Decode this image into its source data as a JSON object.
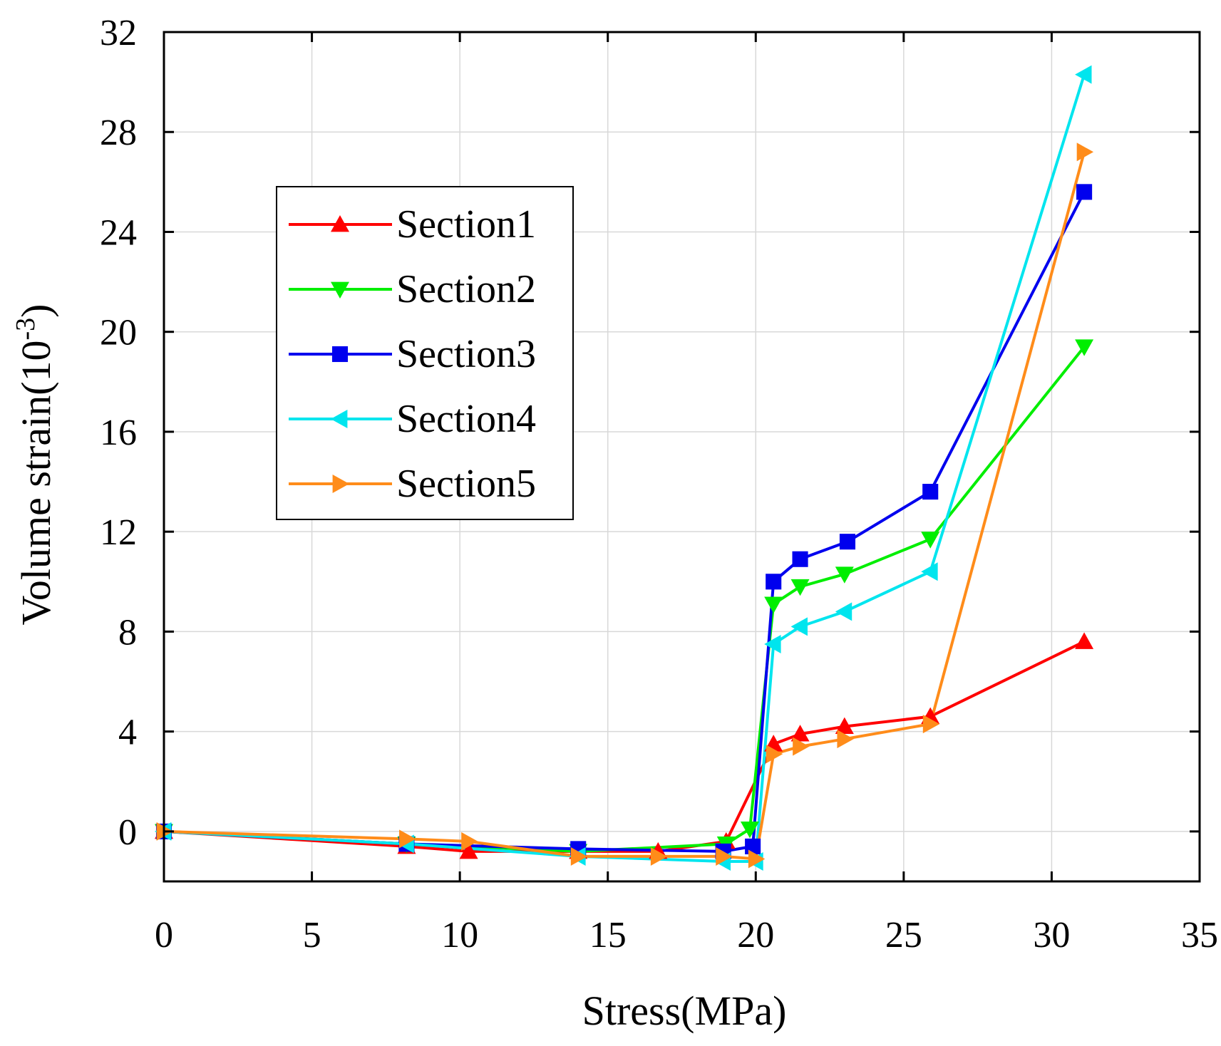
{
  "chart_data": {
    "type": "line",
    "xlabel": "Stress(MPa)",
    "ylabel": "Volume strain(10",
    "ylabel_superscript": "-3",
    "ylabel_close": ")",
    "xlim": [
      0,
      35
    ],
    "ylim": [
      -2,
      32
    ],
    "xticks": [
      0,
      5,
      10,
      15,
      20,
      25,
      30,
      35
    ],
    "yticks": [
      0,
      4,
      8,
      12,
      16,
      20,
      24,
      28,
      32
    ],
    "grid": true,
    "legend_position": "upper-left",
    "series": [
      {
        "name": "Section1",
        "color": "#ff0000",
        "marker": "triangle-up",
        "points": [
          [
            0,
            0
          ],
          [
            8.2,
            -0.6
          ],
          [
            10.3,
            -0.8
          ],
          [
            14,
            -0.8
          ],
          [
            16.7,
            -0.8
          ],
          [
            19,
            -0.4
          ],
          [
            20.6,
            3.5
          ],
          [
            21.5,
            3.9
          ],
          [
            23,
            4.2
          ],
          [
            25.9,
            4.6
          ],
          [
            31.1,
            7.6
          ]
        ]
      },
      {
        "name": "Section2",
        "color": "#00ee00",
        "marker": "triangle-down",
        "points": [
          [
            0,
            0
          ],
          [
            8.2,
            -0.5
          ],
          [
            14,
            -0.8
          ],
          [
            19,
            -0.5
          ],
          [
            19.8,
            0.1
          ],
          [
            20.6,
            9.1
          ],
          [
            21.5,
            9.8
          ],
          [
            23,
            10.3
          ],
          [
            25.9,
            11.7
          ],
          [
            31.1,
            19.4
          ]
        ]
      },
      {
        "name": "Section3",
        "color": "#0000ee",
        "marker": "square",
        "points": [
          [
            0,
            0
          ],
          [
            8.2,
            -0.5
          ],
          [
            14,
            -0.7
          ],
          [
            18.9,
            -0.8
          ],
          [
            19.9,
            -0.6
          ],
          [
            20.6,
            10
          ],
          [
            21.5,
            10.9
          ],
          [
            23.1,
            11.6
          ],
          [
            25.9,
            13.6
          ],
          [
            31.1,
            25.6
          ]
        ]
      },
      {
        "name": "Section4",
        "color": "#00e5ee",
        "marker": "triangle-left",
        "points": [
          [
            0,
            0
          ],
          [
            8.2,
            -0.5
          ],
          [
            14,
            -1.0
          ],
          [
            18.9,
            -1.2
          ],
          [
            20,
            -1.2
          ],
          [
            20.6,
            7.5
          ],
          [
            21.5,
            8.2
          ],
          [
            23,
            8.8
          ],
          [
            25.9,
            10.4
          ],
          [
            31.1,
            30.3
          ]
        ]
      },
      {
        "name": "Section5",
        "color": "#ff8c1a",
        "marker": "triangle-right",
        "points": [
          [
            0,
            0
          ],
          [
            8.2,
            -0.3
          ],
          [
            10.3,
            -0.4
          ],
          [
            14,
            -1.0
          ],
          [
            16.7,
            -1.0
          ],
          [
            18.9,
            -1.0
          ],
          [
            20,
            -1.1
          ],
          [
            20.6,
            3.1
          ],
          [
            21.5,
            3.4
          ],
          [
            23,
            3.7
          ],
          [
            25.9,
            4.3
          ],
          [
            31.1,
            27.2
          ]
        ]
      }
    ]
  }
}
